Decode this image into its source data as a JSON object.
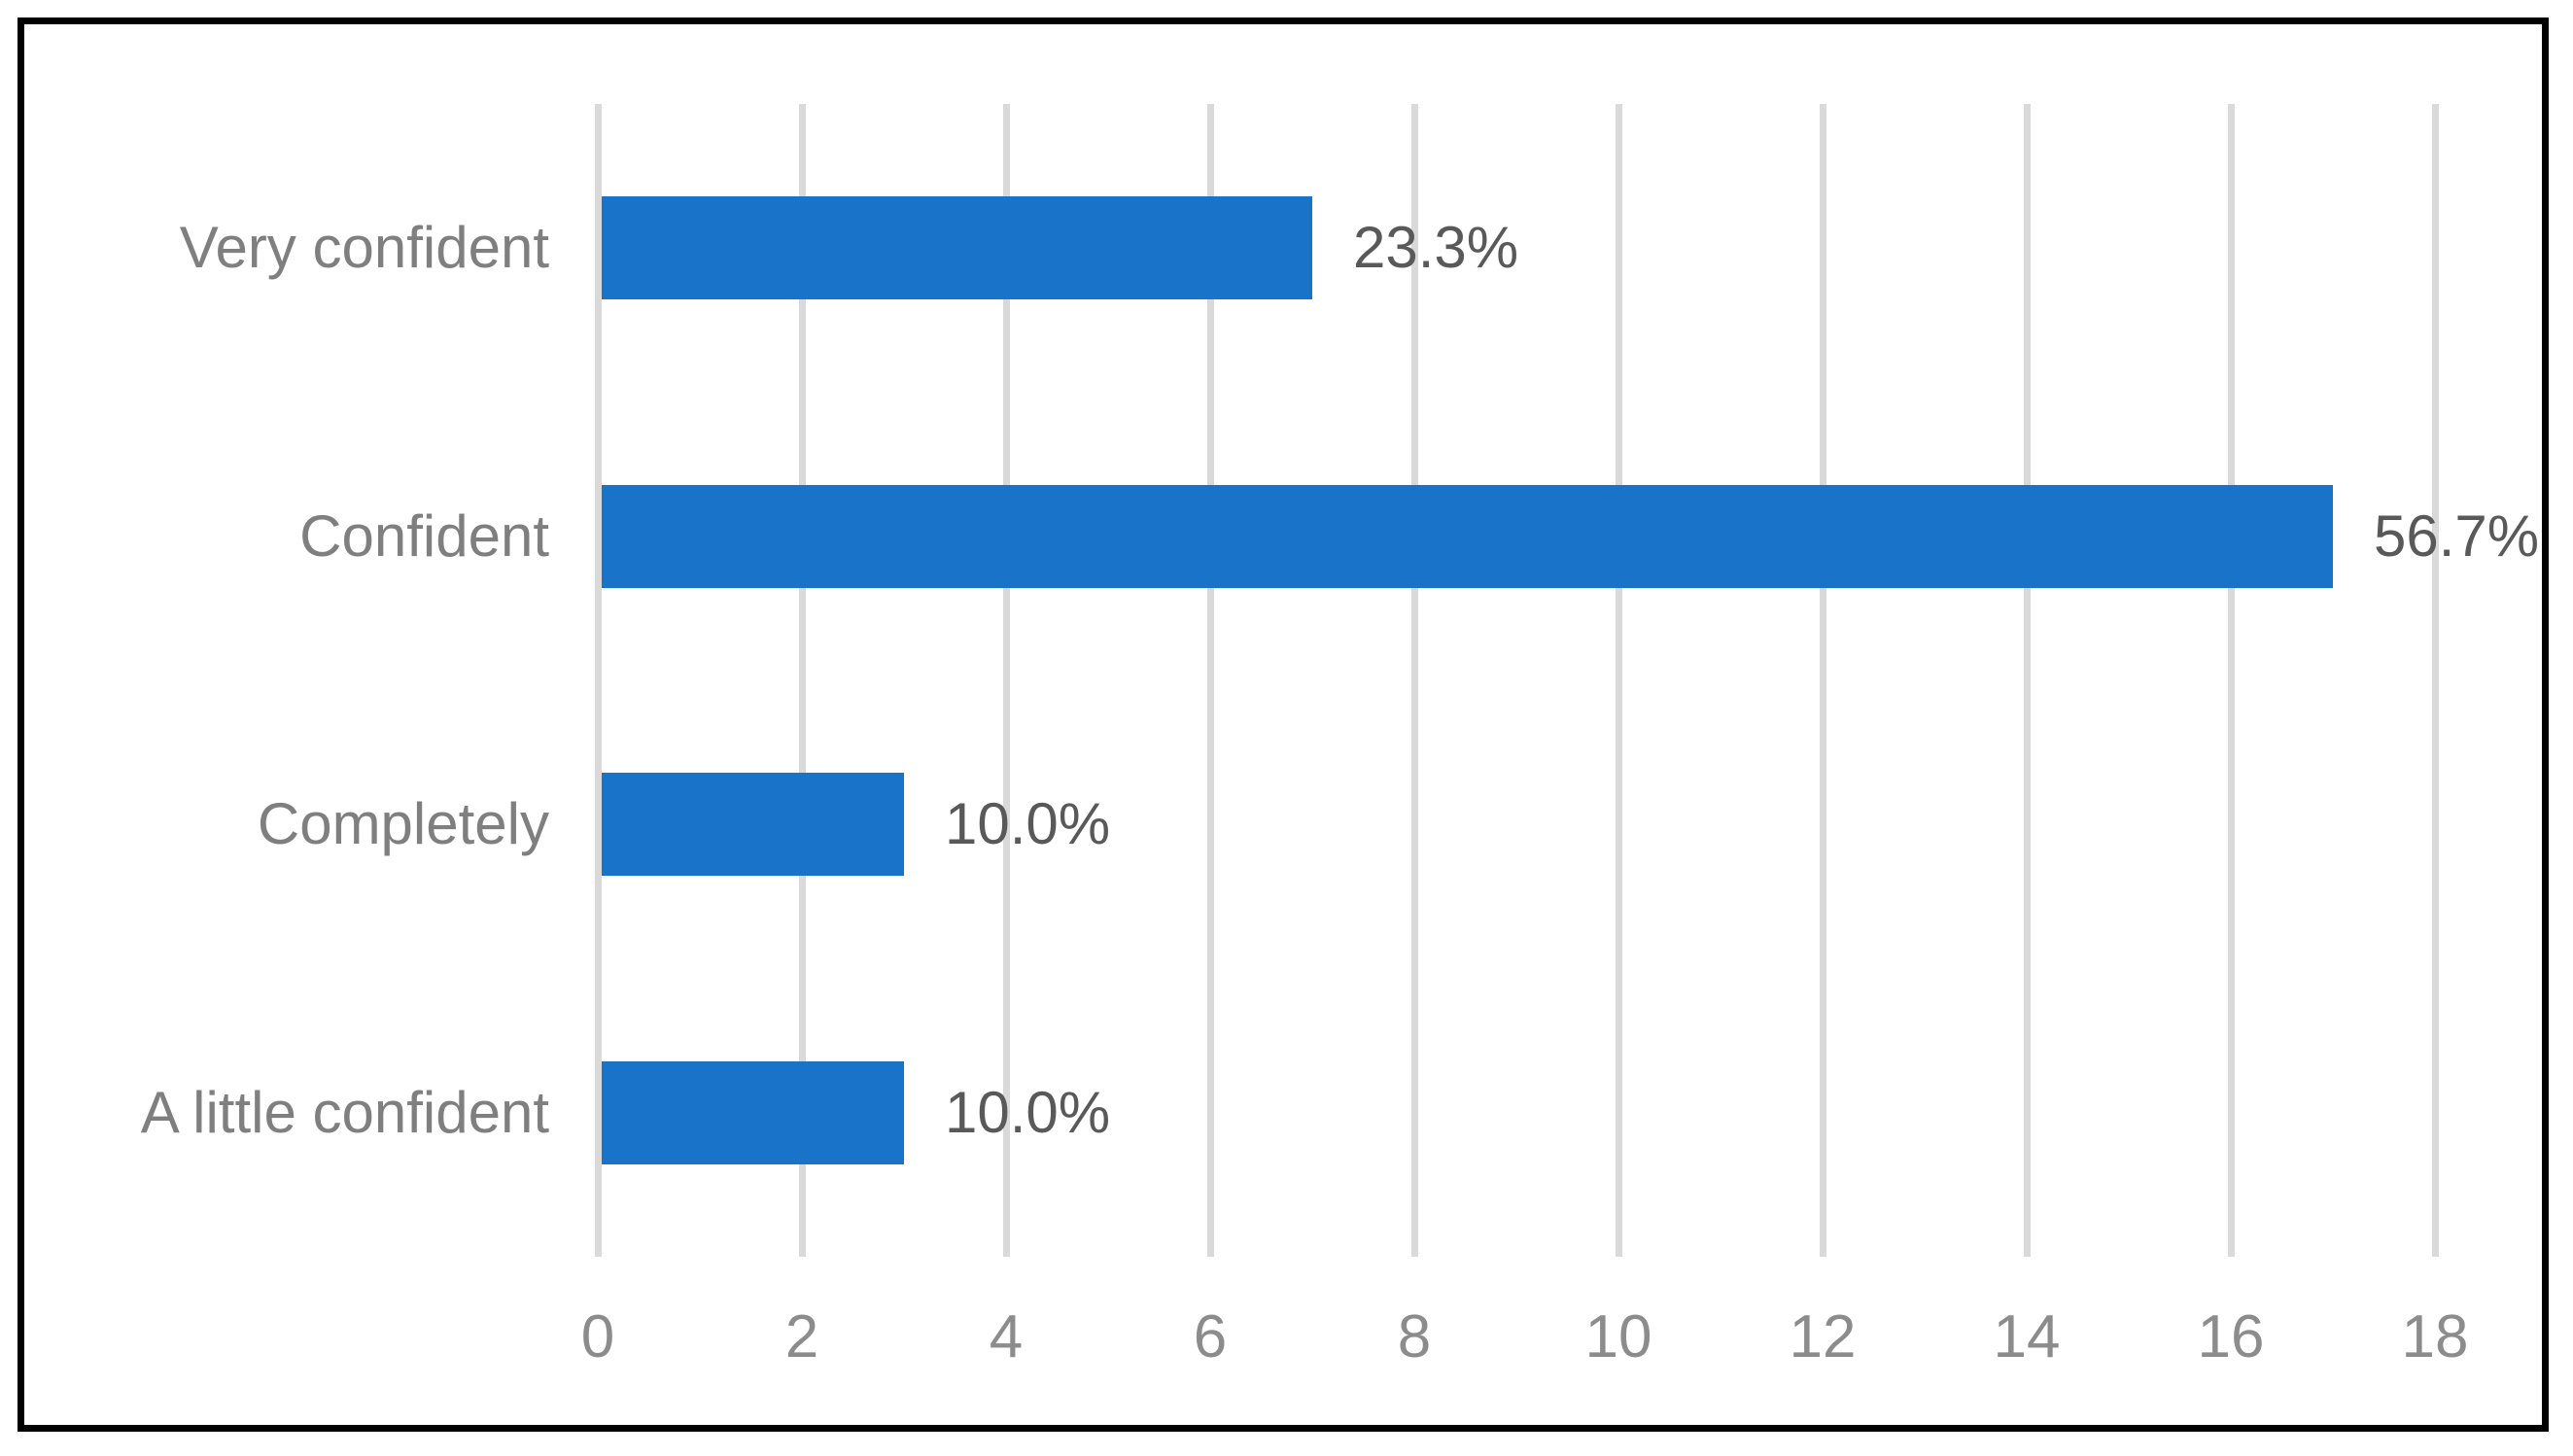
{
  "figure": {
    "background": "#ffffff",
    "border_color": "#000000"
  },
  "chart_data": {
    "type": "bar",
    "orientation": "horizontal",
    "title": "",
    "categories": [
      "Very confident",
      "Confident",
      "Completely",
      "A little confident"
    ],
    "values": [
      7,
      17,
      3,
      3
    ],
    "data_labels": [
      "23.3%",
      "56.7%",
      "10.0%",
      "10.0%"
    ],
    "xlabel": "",
    "ylabel": "",
    "xlim": [
      0,
      18
    ],
    "xticks": [
      0,
      2,
      4,
      6,
      8,
      10,
      12,
      14,
      16,
      18
    ],
    "grid": "vertical",
    "legend": false,
    "colors": {
      "bar": "#1873C9",
      "gridline": "#D9D9D9",
      "category_label": "#7F7F7F",
      "data_label": "#595959",
      "tick_label": "#8C8C8C",
      "border": "#000000"
    }
  }
}
